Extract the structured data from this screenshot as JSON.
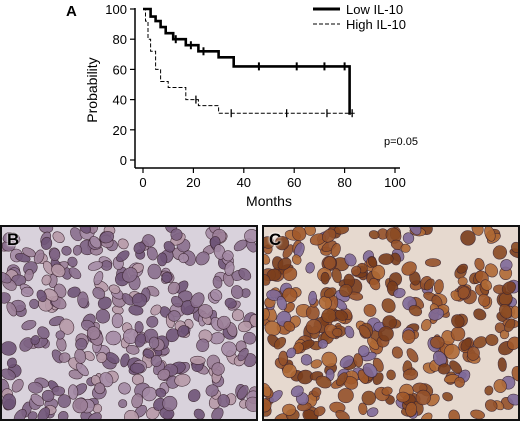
{
  "panels": {
    "a": "A",
    "b": "B",
    "c": "C"
  },
  "chart_data": {
    "type": "line",
    "subtype": "kaplan-meier step",
    "xlabel": "Months",
    "ylabel": "Probability",
    "xlim": [
      0,
      100
    ],
    "ylim": [
      0,
      100
    ],
    "xticks": [
      "0",
      "20",
      "40",
      "60",
      "80",
      "100"
    ],
    "yticks": [
      "0",
      "20",
      "40",
      "60",
      "80",
      "100"
    ],
    "annotation": "p=0.05",
    "legend_position": "top-right",
    "series": [
      {
        "name": "Low IL-10",
        "style": "solid-thick",
        "color": "#000000",
        "x": [
          0,
          3,
          3,
          5,
          5,
          7,
          7,
          9,
          9,
          12,
          12,
          17,
          17,
          22,
          22,
          30,
          30,
          36,
          36,
          82,
          82
        ],
        "y": [
          100,
          100,
          95,
          95,
          92,
          92,
          88,
          88,
          84,
          84,
          80,
          80,
          76,
          76,
          72,
          72,
          68,
          68,
          62,
          62,
          30
        ],
        "censor_x": [
          13,
          19,
          24,
          46,
          61,
          72,
          80
        ]
      },
      {
        "name": "High IL-10",
        "style": "dashed-thin",
        "color": "#000000",
        "x": [
          0,
          1,
          1,
          2,
          2,
          3,
          3,
          5,
          5,
          7,
          7,
          10,
          10,
          17,
          17,
          22,
          22,
          30,
          30,
          84
        ],
        "y": [
          100,
          100,
          92,
          92,
          80,
          80,
          72,
          72,
          60,
          60,
          52,
          52,
          48,
          48,
          40,
          40,
          36,
          36,
          31,
          31
        ],
        "censor_x": [
          21,
          35,
          57,
          73,
          83
        ]
      }
    ]
  }
}
